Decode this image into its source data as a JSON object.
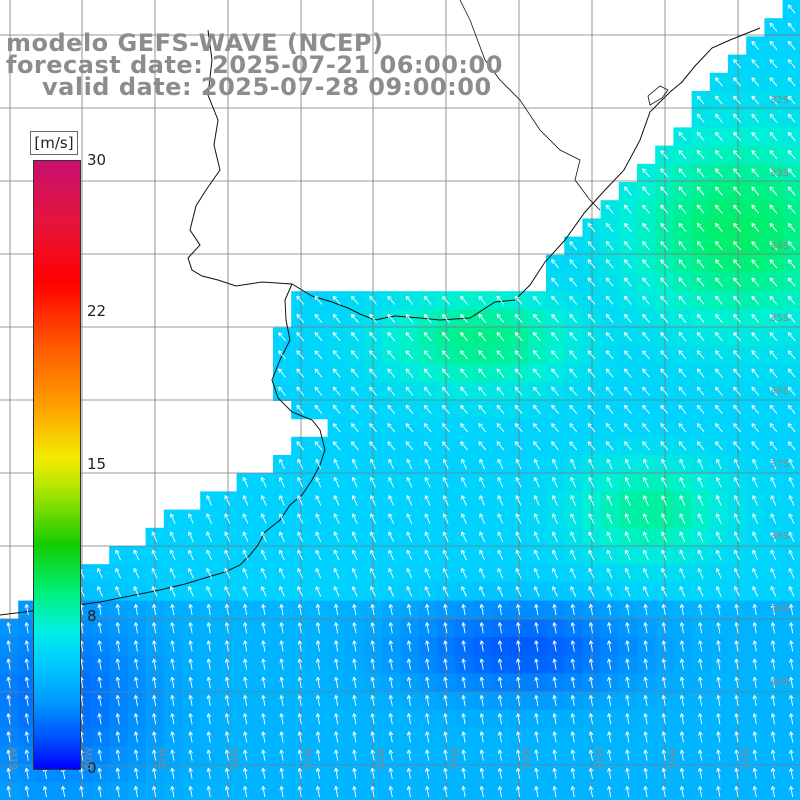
{
  "title": {
    "model": "modelo GEFS-WAVE (NCEP)",
    "forecast": "forecast date: 2025-07-21 06:00:00",
    "valid": "valid date: 2025-07-28 09:00:00"
  },
  "colorbar": {
    "unit": "[m/s]",
    "ticks": [
      "30",
      "22",
      "15",
      "8",
      "0"
    ],
    "colors": [
      "#c8106e",
      "#ff0000",
      "#ff9d00",
      "#f2ec00",
      "#14cc00",
      "#00f0e0",
      "#00cfff",
      "#0099ff",
      "#0000ff"
    ]
  },
  "axis_labels": {
    "lon": [
      "61W",
      "60W",
      "59W",
      "58W",
      "57W",
      "56W",
      "55W",
      "54W",
      "53W",
      "52W",
      "51W"
    ],
    "lat": [
      "32S",
      "33S",
      "34S",
      "35S",
      "36S",
      "37S",
      "38S",
      "39S",
      "40S"
    ]
  },
  "field": {
    "variable": "wind speed",
    "arrows": "wind direction vectors"
  }
}
